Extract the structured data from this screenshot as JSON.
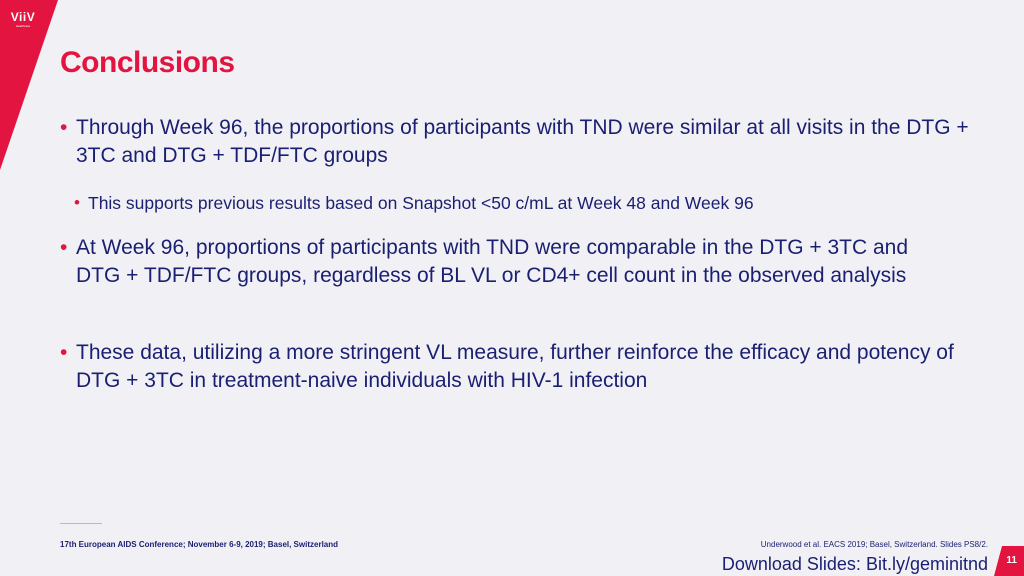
{
  "logo": {
    "mark": "ViiV",
    "sub": "Healthcare"
  },
  "title": "Conclusions",
  "bullets": [
    {
      "text": "Through Week 96, the proportions of participants with TND were similar at all visits in the DTG + 3TC and DTG + TDF/FTC groups"
    },
    {
      "text": "This supports previous results based on Snapshot <50 c/mL at Week 48 and Week 96"
    },
    {
      "text": "At Week 96, proportions of participants with TND were comparable in the DTG + 3TC and DTG + TDF/FTC groups, regardless of BL VL or CD4+ cell count in the observed analysis"
    },
    {
      "text": "These data, utilizing a more stringent VL measure, further reinforce the efficacy and potency of DTG + 3TC in treatment-naive individuals with HIV-1 infection"
    }
  ],
  "footer": {
    "conference": "17th European AIDS Conference; November 6-9, 2019; Basel, Switzerland",
    "reference": "Underwood et al. EACS 2019; Basel, Switzerland. Slides PS8/2.",
    "download": "Download Slides: Bit.ly/geminitnd",
    "page_number": "11"
  },
  "colors": {
    "accent": "#e3143f",
    "text": "#1a1f71",
    "background": "#f0f0f5"
  }
}
